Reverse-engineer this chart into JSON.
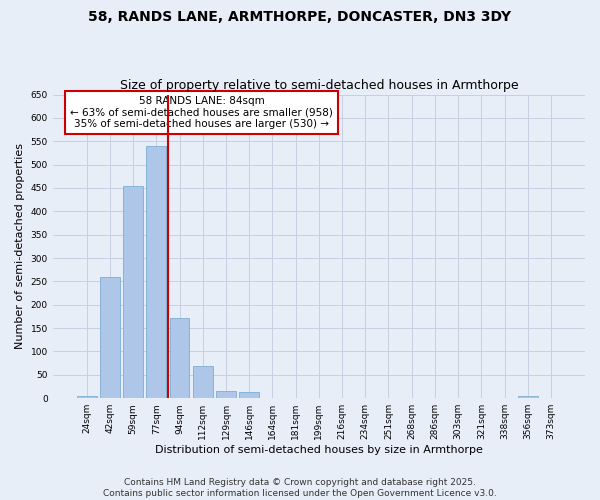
{
  "title": "58, RANDS LANE, ARMTHORPE, DONCASTER, DN3 3DY",
  "subtitle": "Size of property relative to semi-detached houses in Armthorpe",
  "xlabel": "Distribution of semi-detached houses by size in Armthorpe",
  "ylabel": "Number of semi-detached properties",
  "categories": [
    "24sqm",
    "42sqm",
    "59sqm",
    "77sqm",
    "94sqm",
    "112sqm",
    "129sqm",
    "146sqm",
    "164sqm",
    "181sqm",
    "199sqm",
    "216sqm",
    "234sqm",
    "251sqm",
    "268sqm",
    "286sqm",
    "303sqm",
    "321sqm",
    "338sqm",
    "356sqm",
    "373sqm"
  ],
  "values": [
    5,
    260,
    455,
    540,
    172,
    68,
    15,
    14,
    1,
    0,
    0,
    0,
    0,
    0,
    0,
    0,
    0,
    0,
    0,
    5,
    0
  ],
  "bar_color": "#aec6e8",
  "bar_edge_color": "#7aadd4",
  "vline_color": "#cc0000",
  "vline_x": 3.0,
  "annotation_text": "58 RANDS LANE: 84sqm\n← 63% of semi-detached houses are smaller (958)\n35% of semi-detached houses are larger (530) →",
  "annotation_box_color": "#ffffff",
  "annotation_box_edge_color": "#cc0000",
  "ylim": [
    0,
    650
  ],
  "yticks": [
    0,
    50,
    100,
    150,
    200,
    250,
    300,
    350,
    400,
    450,
    500,
    550,
    600,
    650
  ],
  "background_color": "#e8eef7",
  "plot_bg_color": "#e8eef7",
  "grid_color": "#c5d0e0",
  "footer_text": "Contains HM Land Registry data © Crown copyright and database right 2025.\nContains public sector information licensed under the Open Government Licence v3.0.",
  "title_fontsize": 10,
  "subtitle_fontsize": 9,
  "axis_label_fontsize": 8,
  "tick_fontsize": 6.5,
  "annotation_fontsize": 7.5,
  "footer_fontsize": 6.5
}
